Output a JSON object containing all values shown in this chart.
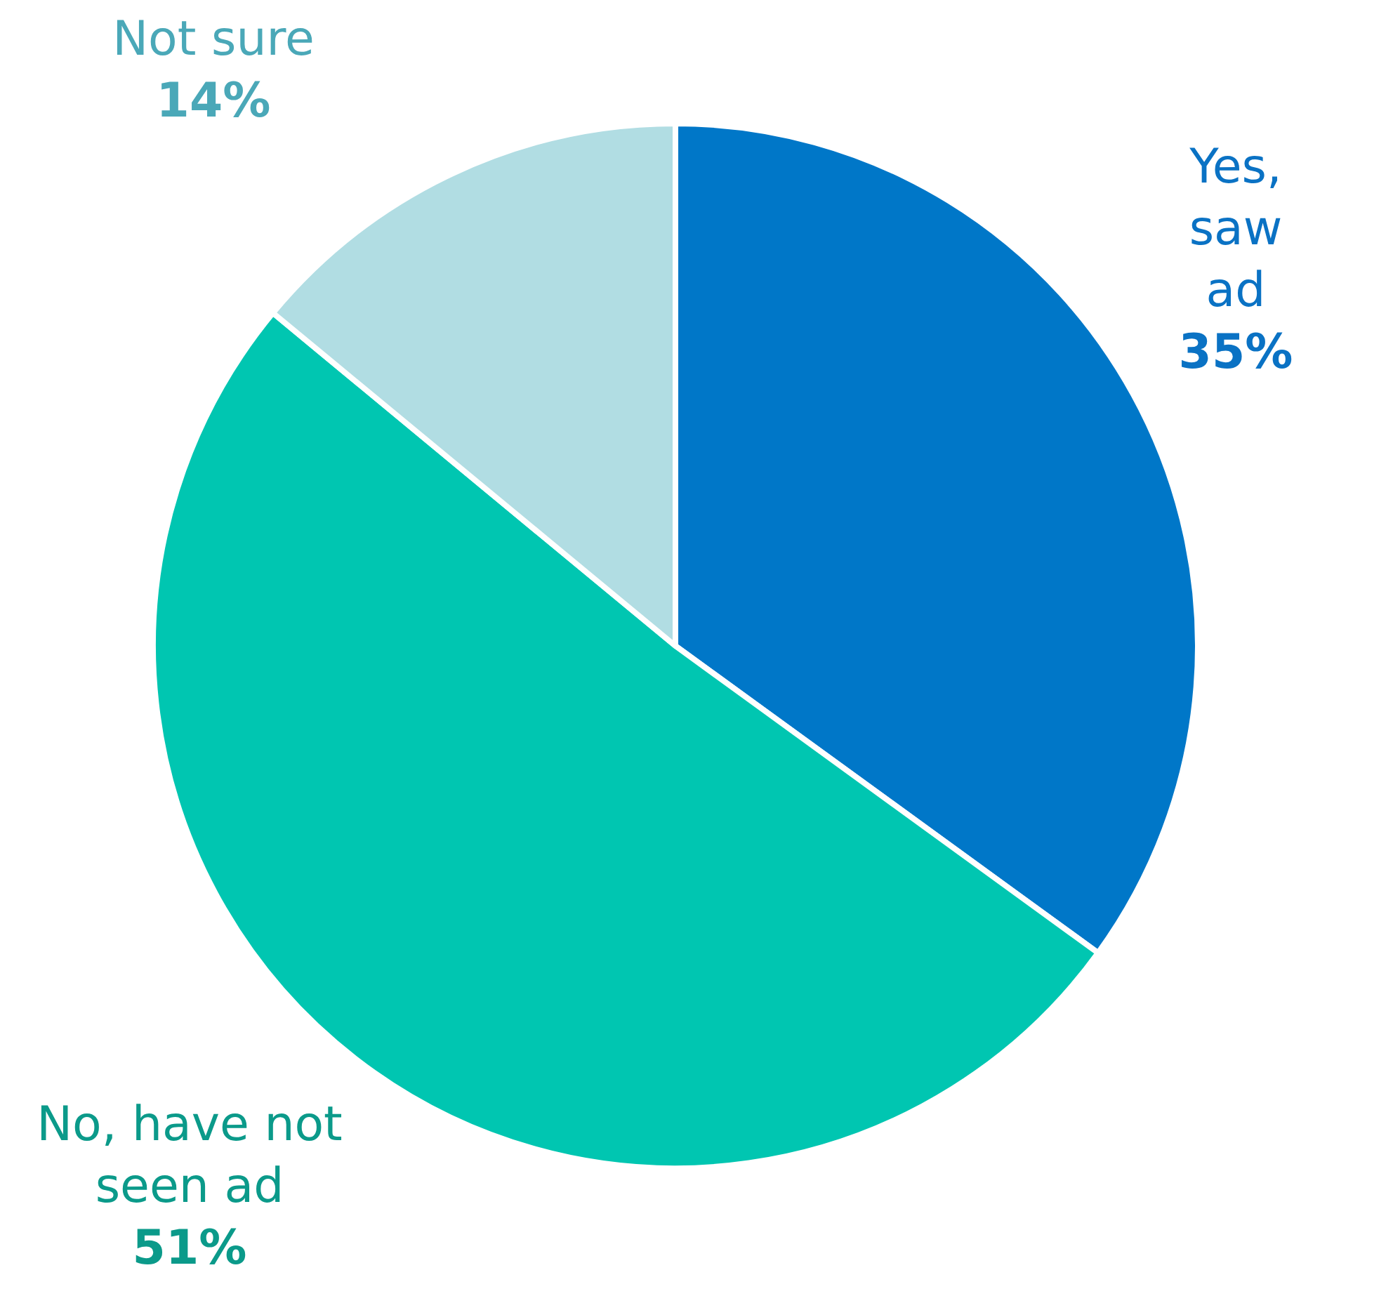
{
  "chart_data": {
    "type": "pie",
    "categories": [
      "Yes, saw ad",
      "No, have not seen ad",
      "Not sure"
    ],
    "values": [
      35,
      51,
      14
    ],
    "colors": [
      "#0077c8",
      "#00c6b1",
      "#b1dde3"
    ],
    "value_labels": [
      "35%",
      "51%",
      "14%"
    ],
    "legend": false
  }
}
